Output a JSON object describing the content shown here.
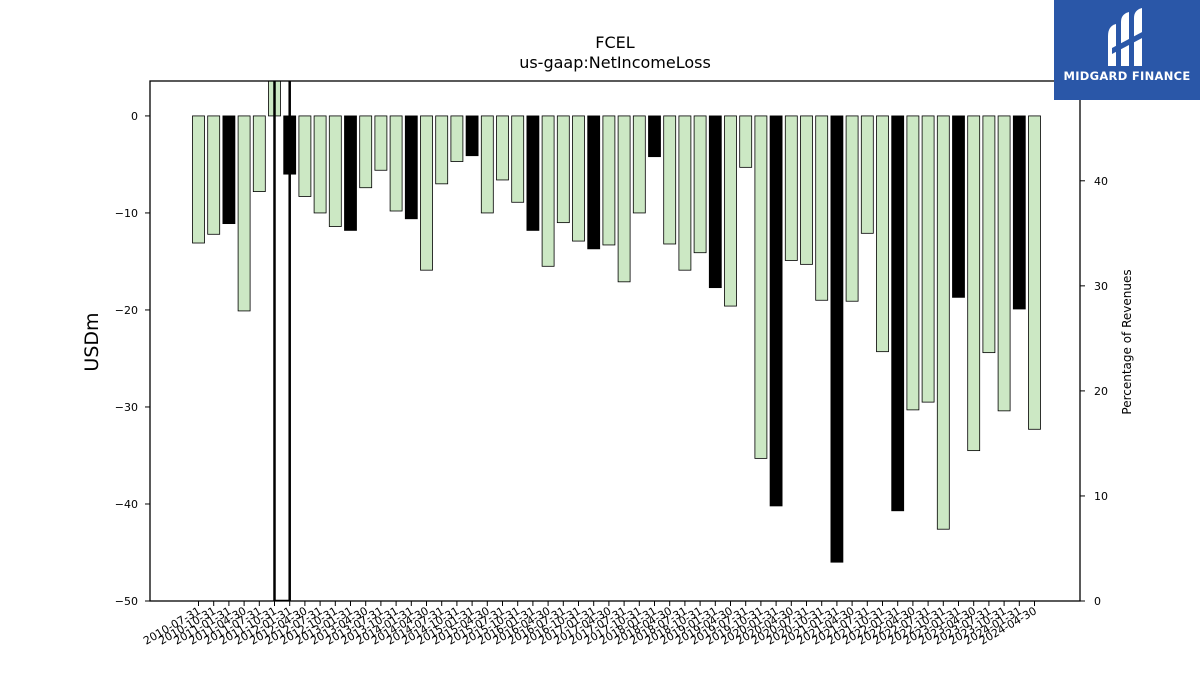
{
  "chart_data": {
    "type": "bar",
    "title": "FCEL",
    "subtitle": "us-gaap:NetIncomeLoss",
    "ylabel": "USDm",
    "y2label": "Percentage of Revenues",
    "ylim": [
      -50,
      3.6
    ],
    "y2lim": [
      0,
      49.5
    ],
    "yticks": [
      0,
      -10,
      -20,
      -30,
      -40,
      -50
    ],
    "y2ticks": [
      0,
      10,
      20,
      30,
      40
    ],
    "categories": [
      "2010-07-31",
      "2010-10-31",
      "2011-01-31",
      "2011-04-30",
      "2011-07-31",
      "2011-10-31",
      "2012-01-31",
      "2012-04-30",
      "2012-07-31",
      "2012-10-31",
      "2013-01-31",
      "2013-04-30",
      "2013-07-31",
      "2013-10-31",
      "2014-01-31",
      "2014-04-30",
      "2014-07-31",
      "2014-10-31",
      "2015-01-31",
      "2015-04-30",
      "2015-07-31",
      "2015-10-31",
      "2016-01-31",
      "2016-04-30",
      "2016-07-31",
      "2016-10-31",
      "2017-01-31",
      "2017-04-30",
      "2017-07-31",
      "2017-10-31",
      "2018-01-31",
      "2018-04-30",
      "2018-07-31",
      "2018-10-31",
      "2019-01-31",
      "2019-04-30",
      "2019-07-31",
      "2019-10-31",
      "2020-01-31",
      "2020-04-30",
      "2020-07-31",
      "2020-10-31",
      "2021-01-31",
      "2021-04-30",
      "2021-07-31",
      "2021-10-31",
      "2022-01-31",
      "2022-04-30",
      "2022-07-31",
      "2022-10-31",
      "2023-01-31",
      "2023-04-30",
      "2023-07-31",
      "2023-10-31",
      "2024-01-31",
      "2024-04-30"
    ],
    "series": [
      {
        "values": [
          -13.1,
          -12.2,
          -11.1,
          -20.1,
          -7.8,
          3.6,
          -6.0,
          -8.3,
          -10.0,
          -11.4,
          -11.8,
          -7.4,
          -5.6,
          -9.8,
          -10.6,
          -15.9,
          -7.0,
          -4.7,
          -4.1,
          -10.0,
          -6.6,
          -8.9,
          -11.8,
          -15.5,
          -11.0,
          -12.9,
          -13.7,
          -13.3,
          -17.1,
          -10.0,
          -4.2,
          -13.2,
          -15.9,
          -14.1,
          -17.7,
          -19.6,
          -5.3,
          -35.3,
          -40.2,
          -14.9,
          -15.3,
          -19.0,
          -46.0,
          -19.1,
          -12.1,
          -24.3,
          -40.7,
          -30.3,
          -29.5,
          -42.6,
          -18.7,
          -34.5,
          -24.4,
          -30.4,
          -19.9,
          -32.3
        ],
        "highlight": [
          2,
          6,
          10,
          14,
          18,
          22,
          26,
          30,
          34,
          38,
          42,
          46,
          50,
          54
        ]
      }
    ],
    "percent_line": [
      {
        "index": 5,
        "value": 49.5
      },
      {
        "index": 5,
        "value": 0
      },
      {
        "index": 6,
        "value": 0
      },
      {
        "index": 6,
        "value": 49.5
      }
    ],
    "colors": {
      "bar": "#cce8c4",
      "highlight": "#000000",
      "edge": "#000000"
    }
  },
  "logo": {
    "text": "MIDGARD FINANCE",
    "bg": "#2a57a8"
  }
}
